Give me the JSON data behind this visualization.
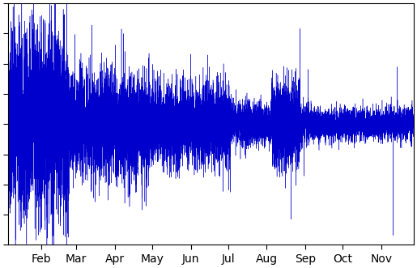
{
  "title": "",
  "line_color": "#0000CC",
  "background_color": "#ffffff",
  "x_tick_labels": [
    "Feb",
    "Mar",
    "Apr",
    "May",
    "Jun",
    "Jul",
    "Aug",
    "Sep",
    "Oct",
    "Nov"
  ],
  "ylim": [
    -10,
    10
  ],
  "figsize": [
    5.15,
    3.31
  ],
  "dpi": 100,
  "n_points": 14000,
  "seed": 42,
  "early_vol": 2.5,
  "mid_vol": 1.2,
  "late_vol": 0.5,
  "line_width": 0.3
}
